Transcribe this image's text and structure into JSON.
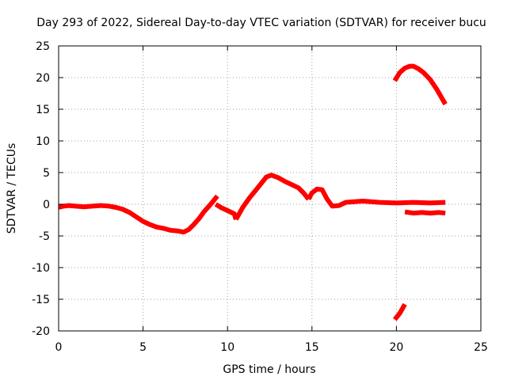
{
  "chart_data": {
    "type": "line",
    "title": "Day 293 of 2022, Sidereal Day-to-day VTEC variation (SDTVAR) for receiver bucu",
    "xlabel": "GPS time / hours",
    "ylabel": "SDTVAR / TECUs",
    "xlim": [
      0,
      25
    ],
    "ylim": [
      -20,
      25
    ],
    "xticks": [
      0,
      5,
      10,
      15,
      20,
      25
    ],
    "yticks": [
      -20,
      -15,
      -10,
      -5,
      0,
      5,
      10,
      15,
      20,
      25
    ],
    "grid": true,
    "colors": {
      "series": "#ff0000",
      "grid": "#a0a0a0",
      "frame": "#000000"
    },
    "series": [
      {
        "name": "sdtvar-main",
        "x": [
          0.0,
          0.3,
          0.6,
          1.0,
          1.5,
          2.0,
          2.5,
          3.0,
          3.4,
          3.8,
          4.2,
          4.6,
          5.0,
          5.4,
          5.8,
          6.2,
          6.6,
          7.0,
          7.4,
          7.7,
          8.0,
          8.3,
          8.6,
          9.0,
          9.4
        ],
        "y": [
          -0.5,
          -0.3,
          -0.2,
          -0.3,
          -0.4,
          -0.3,
          -0.2,
          -0.3,
          -0.5,
          -0.8,
          -1.3,
          -2.0,
          -2.7,
          -3.2,
          -3.6,
          -3.8,
          -4.1,
          -4.2,
          -4.4,
          -4.0,
          -3.2,
          -2.3,
          -1.2,
          0.0,
          1.3
        ]
      },
      {
        "name": "sdtvar-segment-2",
        "x": [
          9.3,
          9.6,
          10.0,
          10.4,
          10.5
        ],
        "y": [
          0.0,
          -0.5,
          -1.0,
          -1.5,
          -2.4
        ]
      },
      {
        "name": "sdtvar-segment-3",
        "x": [
          10.5,
          10.9,
          11.3,
          11.7,
          12.0,
          12.3,
          12.6,
          13.0,
          13.4,
          13.8,
          14.2,
          14.5,
          14.8
        ],
        "y": [
          -2.4,
          -0.5,
          1.0,
          2.3,
          3.3,
          4.3,
          4.6,
          4.2,
          3.6,
          3.1,
          2.6,
          1.8,
          0.8
        ]
      },
      {
        "name": "sdtvar-segment-4",
        "x": [
          14.8,
          15.0,
          15.3,
          15.6,
          15.9,
          16.2,
          16.6,
          17.0,
          18.0,
          19.0,
          20.0,
          21.0,
          22.0,
          22.9
        ],
        "y": [
          0.8,
          1.8,
          2.4,
          2.3,
          0.8,
          -0.3,
          -0.2,
          0.3,
          0.5,
          0.3,
          0.2,
          0.3,
          0.2,
          0.3
        ]
      },
      {
        "name": "sdtvar-segment-5",
        "x": [
          20.5,
          21.0,
          21.5,
          22.0,
          22.5,
          22.9
        ],
        "y": [
          -1.2,
          -1.4,
          -1.3,
          -1.4,
          -1.3,
          -1.4
        ]
      },
      {
        "name": "sdtvar-segment-6",
        "x": [
          19.9,
          20.2,
          20.5,
          20.8,
          21.0,
          21.3,
          21.6,
          22.0,
          22.4,
          22.9
        ],
        "y": [
          19.5,
          20.8,
          21.5,
          21.8,
          21.8,
          21.4,
          20.8,
          19.7,
          18.1,
          15.8
        ]
      },
      {
        "name": "sdtvar-segment-7",
        "x": [
          19.9,
          20.2,
          20.5
        ],
        "y": [
          -18.2,
          -17.2,
          -15.8
        ]
      }
    ]
  }
}
